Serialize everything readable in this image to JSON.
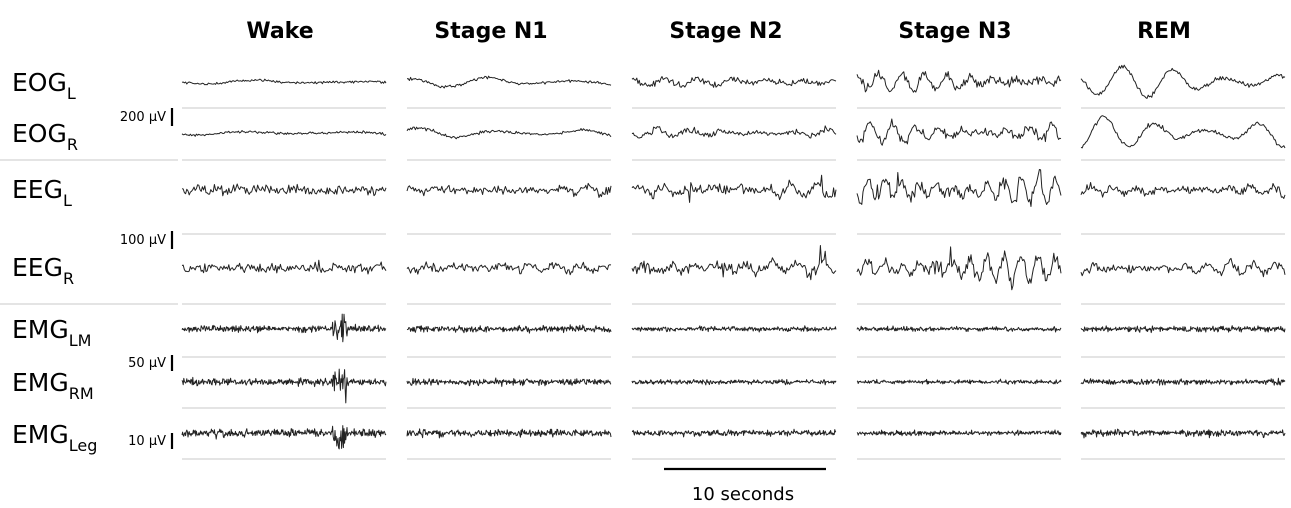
{
  "stages": [
    "Wake",
    "Stage N1",
    "Stage N2",
    "Stage N3",
    "REM"
  ],
  "channels": [
    {
      "base": "EOG",
      "sub": "L"
    },
    {
      "base": "EOG",
      "sub": "R"
    },
    {
      "base": "EEG",
      "sub": "L"
    },
    {
      "base": "EEG",
      "sub": "R"
    },
    {
      "base": "EMG",
      "sub": "LM"
    },
    {
      "base": "EMG",
      "sub": "RM"
    },
    {
      "base": "EMG",
      "sub": "Leg"
    }
  ],
  "scale_bars": [
    "200 µV",
    "100 µV",
    "50 µV",
    "10 µV"
  ],
  "time_bar": "10 seconds",
  "trace_color": "#222222",
  "separator_color": "#c8c8c8"
}
